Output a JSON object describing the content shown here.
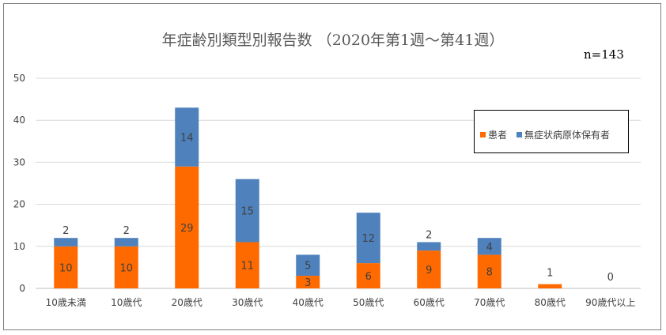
{
  "chart_data": {
    "type": "bar",
    "stacked": true,
    "title": "年症齢別類型別報告数 （2020年第1週～第41週）",
    "note": "n=143",
    "categories": [
      "10歳未満",
      "10歳代",
      "20歳代",
      "30歳代",
      "40歳代",
      "50歳代",
      "60歳代",
      "70歳代",
      "80歳代",
      "90歳代以上"
    ],
    "series": [
      {
        "name": "患者",
        "color": "#ff6a00",
        "values": [
          10,
          10,
          29,
          11,
          3,
          6,
          9,
          8,
          1,
          0
        ]
      },
      {
        "name": "無症状病原体保有者",
        "color": "#4f81bd",
        "values": [
          2,
          2,
          14,
          15,
          5,
          12,
          2,
          4,
          0,
          0
        ]
      }
    ],
    "data_labels": [
      {
        "patients": "10",
        "carriers": "2"
      },
      {
        "patients": "10",
        "carriers": "2"
      },
      {
        "patients": "29",
        "carriers": "14"
      },
      {
        "patients": "11",
        "carriers": "15"
      },
      {
        "patients": "3",
        "carriers": "5"
      },
      {
        "patients": "6",
        "carriers": "12"
      },
      {
        "patients": "9",
        "carriers": "2"
      },
      {
        "patients": "8",
        "carriers": "4"
      },
      {
        "patients": "",
        "carriers": "",
        "total": "1"
      },
      {
        "patients": "",
        "carriers": "",
        "total": "0"
      }
    ],
    "yticks": [
      "0",
      "10",
      "20",
      "30",
      "40",
      "50"
    ],
    "ylim": [
      0,
      50
    ],
    "grid": true,
    "legend_position": "right"
  }
}
